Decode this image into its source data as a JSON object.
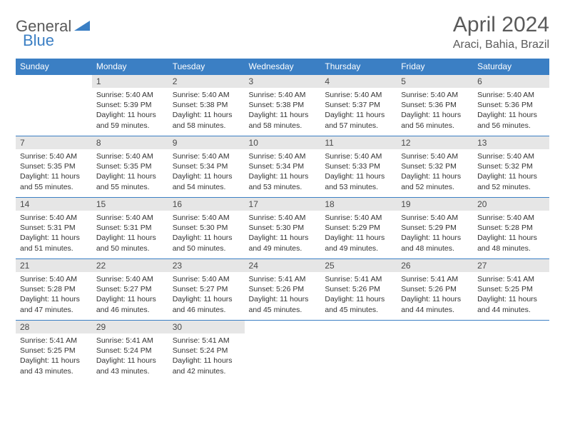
{
  "logo": {
    "general": "General",
    "blue": "Blue"
  },
  "title": "April 2024",
  "location": "Araci, Bahia, Brazil",
  "day_headers": [
    "Sunday",
    "Monday",
    "Tuesday",
    "Wednesday",
    "Thursday",
    "Friday",
    "Saturday"
  ],
  "colors": {
    "header_bg": "#3b7fc4",
    "header_text": "#ffffff",
    "daynum_bg": "#e6e6e6",
    "border": "#3b7fc4",
    "title_color": "#5a5a5a"
  },
  "weeks": [
    [
      null,
      {
        "n": "1",
        "sunrise": "5:40 AM",
        "sunset": "5:39 PM",
        "daylight": "11 hours and 59 minutes."
      },
      {
        "n": "2",
        "sunrise": "5:40 AM",
        "sunset": "5:38 PM",
        "daylight": "11 hours and 58 minutes."
      },
      {
        "n": "3",
        "sunrise": "5:40 AM",
        "sunset": "5:38 PM",
        "daylight": "11 hours and 58 minutes."
      },
      {
        "n": "4",
        "sunrise": "5:40 AM",
        "sunset": "5:37 PM",
        "daylight": "11 hours and 57 minutes."
      },
      {
        "n": "5",
        "sunrise": "5:40 AM",
        "sunset": "5:36 PM",
        "daylight": "11 hours and 56 minutes."
      },
      {
        "n": "6",
        "sunrise": "5:40 AM",
        "sunset": "5:36 PM",
        "daylight": "11 hours and 56 minutes."
      }
    ],
    [
      {
        "n": "7",
        "sunrise": "5:40 AM",
        "sunset": "5:35 PM",
        "daylight": "11 hours and 55 minutes."
      },
      {
        "n": "8",
        "sunrise": "5:40 AM",
        "sunset": "5:35 PM",
        "daylight": "11 hours and 55 minutes."
      },
      {
        "n": "9",
        "sunrise": "5:40 AM",
        "sunset": "5:34 PM",
        "daylight": "11 hours and 54 minutes."
      },
      {
        "n": "10",
        "sunrise": "5:40 AM",
        "sunset": "5:34 PM",
        "daylight": "11 hours and 53 minutes."
      },
      {
        "n": "11",
        "sunrise": "5:40 AM",
        "sunset": "5:33 PM",
        "daylight": "11 hours and 53 minutes."
      },
      {
        "n": "12",
        "sunrise": "5:40 AM",
        "sunset": "5:32 PM",
        "daylight": "11 hours and 52 minutes."
      },
      {
        "n": "13",
        "sunrise": "5:40 AM",
        "sunset": "5:32 PM",
        "daylight": "11 hours and 52 minutes."
      }
    ],
    [
      {
        "n": "14",
        "sunrise": "5:40 AM",
        "sunset": "5:31 PM",
        "daylight": "11 hours and 51 minutes."
      },
      {
        "n": "15",
        "sunrise": "5:40 AM",
        "sunset": "5:31 PM",
        "daylight": "11 hours and 50 minutes."
      },
      {
        "n": "16",
        "sunrise": "5:40 AM",
        "sunset": "5:30 PM",
        "daylight": "11 hours and 50 minutes."
      },
      {
        "n": "17",
        "sunrise": "5:40 AM",
        "sunset": "5:30 PM",
        "daylight": "11 hours and 49 minutes."
      },
      {
        "n": "18",
        "sunrise": "5:40 AM",
        "sunset": "5:29 PM",
        "daylight": "11 hours and 49 minutes."
      },
      {
        "n": "19",
        "sunrise": "5:40 AM",
        "sunset": "5:29 PM",
        "daylight": "11 hours and 48 minutes."
      },
      {
        "n": "20",
        "sunrise": "5:40 AM",
        "sunset": "5:28 PM",
        "daylight": "11 hours and 48 minutes."
      }
    ],
    [
      {
        "n": "21",
        "sunrise": "5:40 AM",
        "sunset": "5:28 PM",
        "daylight": "11 hours and 47 minutes."
      },
      {
        "n": "22",
        "sunrise": "5:40 AM",
        "sunset": "5:27 PM",
        "daylight": "11 hours and 46 minutes."
      },
      {
        "n": "23",
        "sunrise": "5:40 AM",
        "sunset": "5:27 PM",
        "daylight": "11 hours and 46 minutes."
      },
      {
        "n": "24",
        "sunrise": "5:41 AM",
        "sunset": "5:26 PM",
        "daylight": "11 hours and 45 minutes."
      },
      {
        "n": "25",
        "sunrise": "5:41 AM",
        "sunset": "5:26 PM",
        "daylight": "11 hours and 45 minutes."
      },
      {
        "n": "26",
        "sunrise": "5:41 AM",
        "sunset": "5:26 PM",
        "daylight": "11 hours and 44 minutes."
      },
      {
        "n": "27",
        "sunrise": "5:41 AM",
        "sunset": "5:25 PM",
        "daylight": "11 hours and 44 minutes."
      }
    ],
    [
      {
        "n": "28",
        "sunrise": "5:41 AM",
        "sunset": "5:25 PM",
        "daylight": "11 hours and 43 minutes."
      },
      {
        "n": "29",
        "sunrise": "5:41 AM",
        "sunset": "5:24 PM",
        "daylight": "11 hours and 43 minutes."
      },
      {
        "n": "30",
        "sunrise": "5:41 AM",
        "sunset": "5:24 PM",
        "daylight": "11 hours and 42 minutes."
      },
      null,
      null,
      null,
      null
    ]
  ],
  "labels": {
    "sunrise": "Sunrise: ",
    "sunset": "Sunset: ",
    "daylight": "Daylight: "
  }
}
